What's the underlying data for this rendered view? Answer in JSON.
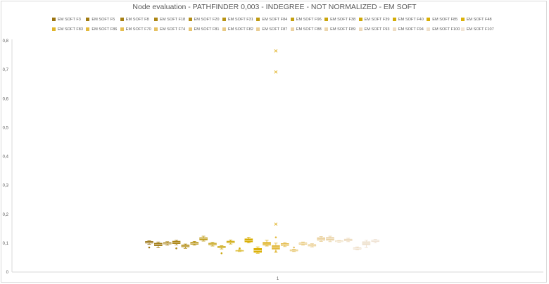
{
  "chart_data": {
    "type": "box",
    "title": "Node evaluation - PATHFINDER 0,003 - INDEGREE  - NOT NORMALIZED - EM SOFT",
    "xlabel": "",
    "ylabel": "",
    "categories": [
      "1"
    ],
    "ylim": [
      0,
      0.8
    ],
    "yticks": [
      "0",
      "0,1",
      "0,2",
      "0,3",
      "0,4",
      "0,5",
      "0,6",
      "0,7",
      "0,8"
    ],
    "grid": false,
    "legend_position": "top",
    "series": [
      {
        "name": "EM SOFT F3",
        "color": "#9a7311",
        "min": 0.096,
        "q1": 0.1,
        "median": 0.103,
        "q3": 0.106,
        "max": 0.108,
        "outliers": [
          0.085
        ]
      },
      {
        "name": "EM SOFT F5",
        "color": "#a07b12",
        "min": 0.084,
        "q1": 0.091,
        "median": 0.096,
        "q3": 0.1,
        "max": 0.104,
        "outliers": []
      },
      {
        "name": "EM SOFT F8",
        "color": "#a68014",
        "min": 0.093,
        "q1": 0.097,
        "median": 0.099,
        "q3": 0.102,
        "max": 0.105,
        "outliers": []
      },
      {
        "name": "EM SOFT F18",
        "color": "#ac8615",
        "min": 0.094,
        "q1": 0.098,
        "median": 0.102,
        "q3": 0.107,
        "max": 0.11,
        "outliers": [
          0.082
        ]
      },
      {
        "name": "EM SOFT F20",
        "color": "#b28c14",
        "min": 0.082,
        "q1": 0.087,
        "median": 0.09,
        "q3": 0.094,
        "max": 0.097,
        "outliers": []
      },
      {
        "name": "EM SOFT F31",
        "color": "#b89314",
        "min": 0.093,
        "q1": 0.096,
        "median": 0.099,
        "q3": 0.103,
        "max": 0.106,
        "outliers": []
      },
      {
        "name": "EM SOFT F84",
        "color": "#be9a13",
        "min": 0.107,
        "q1": 0.111,
        "median": 0.115,
        "q3": 0.119,
        "max": 0.124,
        "outliers": []
      },
      {
        "name": "EM SOFT F96",
        "color": "#c4a010",
        "min": 0.09,
        "q1": 0.094,
        "median": 0.097,
        "q3": 0.1,
        "max": 0.103,
        "outliers": []
      },
      {
        "name": "EM SOFT F38",
        "color": "#caa50c",
        "min": 0.08,
        "q1": 0.084,
        "median": 0.087,
        "q3": 0.089,
        "max": 0.091,
        "outliers": [
          0.065
        ]
      },
      {
        "name": "EM SOFT F39",
        "color": "#cfa908",
        "min": 0.097,
        "q1": 0.101,
        "median": 0.104,
        "q3": 0.107,
        "max": 0.111,
        "outliers": []
      },
      {
        "name": "EM SOFT F40",
        "color": "#d4ac06",
        "min": 0.071,
        "q1": 0.072,
        "median": 0.073,
        "q3": 0.075,
        "max": 0.077,
        "outliers": [
          0.082
        ]
      },
      {
        "name": "EM SOFT F85",
        "color": "#d8ae05",
        "min": 0.101,
        "q1": 0.104,
        "median": 0.108,
        "q3": 0.115,
        "max": 0.12,
        "outliers": []
      },
      {
        "name": "EM SOFT F48",
        "color": "#dcb20a",
        "min": 0.065,
        "q1": 0.068,
        "median": 0.074,
        "q3": 0.082,
        "max": 0.087,
        "outliers": []
      },
      {
        "name": "EM SOFT F83",
        "color": "#e0b52a",
        "min": 0.09,
        "q1": 0.093,
        "median": 0.097,
        "q3": 0.103,
        "max": 0.11,
        "outliers": []
      },
      {
        "name": "EM SOFT F86",
        "color": "#e3ba3e",
        "min": 0.068,
        "q1": 0.079,
        "median": 0.086,
        "q3": 0.092,
        "max": 0.1,
        "outliers": [
          0.765,
          0.692,
          0.166,
          0.12,
          0.072
        ]
      },
      {
        "name": "EM SOFT F70",
        "color": "#e5be52",
        "min": 0.088,
        "q1": 0.092,
        "median": 0.096,
        "q3": 0.099,
        "max": 0.102,
        "outliers": []
      },
      {
        "name": "EM SOFT F74",
        "color": "#e6c264",
        "min": 0.071,
        "q1": 0.073,
        "median": 0.075,
        "q3": 0.077,
        "max": 0.079,
        "outliers": [
          0.085
        ]
      },
      {
        "name": "EM SOFT F81",
        "color": "#e7c676",
        "min": 0.093,
        "q1": 0.096,
        "median": 0.098,
        "q3": 0.101,
        "max": 0.104,
        "outliers": []
      },
      {
        "name": "EM SOFT F82",
        "color": "#e8ca86",
        "min": 0.087,
        "q1": 0.09,
        "median": 0.092,
        "q3": 0.095,
        "max": 0.098,
        "outliers": []
      },
      {
        "name": "EM SOFT F87",
        "color": "#e9ce96",
        "min": 0.106,
        "q1": 0.11,
        "median": 0.114,
        "q3": 0.119,
        "max": 0.123,
        "outliers": []
      },
      {
        "name": "EM SOFT F88",
        "color": "#ead2a4",
        "min": 0.105,
        "q1": 0.11,
        "median": 0.115,
        "q3": 0.12,
        "max": 0.124,
        "outliers": []
      },
      {
        "name": "EM SOFT F89",
        "color": "#ebd6b0",
        "min": 0.103,
        "q1": 0.105,
        "median": 0.106,
        "q3": 0.108,
        "max": 0.109,
        "outliers": []
      },
      {
        "name": "EM SOFT F93",
        "color": "#ecd9bb",
        "min": 0.105,
        "q1": 0.108,
        "median": 0.111,
        "q3": 0.114,
        "max": 0.117,
        "outliers": []
      },
      {
        "name": "EM SOFT F94",
        "color": "#eddcc4",
        "min": 0.077,
        "q1": 0.079,
        "median": 0.081,
        "q3": 0.084,
        "max": 0.087,
        "outliers": []
      },
      {
        "name": "EM SOFT F100",
        "color": "#eee0cd",
        "min": 0.085,
        "q1": 0.094,
        "median": 0.1,
        "q3": 0.105,
        "max": 0.11,
        "outliers": []
      },
      {
        "name": "EM SOFT F107",
        "color": "#f0e4d6",
        "min": 0.101,
        "q1": 0.105,
        "median": 0.108,
        "q3": 0.111,
        "max": 0.113,
        "outliers": []
      }
    ]
  }
}
